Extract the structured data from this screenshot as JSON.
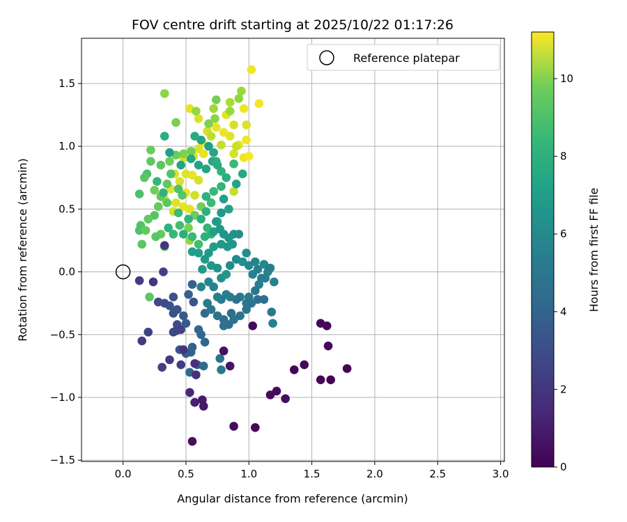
{
  "chart_data": {
    "type": "scatter",
    "title": "FOV centre drift starting at 2025/10/22 01:17:26",
    "xlabel": "Angular distance from reference (arcmin)",
    "ylabel": "Rotation from reference (arcmin)",
    "xlim": [
      -0.33,
      3.03
    ],
    "ylim": [
      -1.51,
      1.86
    ],
    "xticks": [
      0.0,
      0.5,
      1.0,
      1.5,
      2.0,
      2.5,
      3.0
    ],
    "xtick_labels": [
      "0.0",
      "0.5",
      "1.0",
      "1.5",
      "2.0",
      "2.5",
      "3.0"
    ],
    "yticks": [
      -1.5,
      -1.0,
      -0.5,
      0.0,
      0.5,
      1.0,
      1.5
    ],
    "ytick_labels": [
      "−1.5",
      "−1.0",
      "−0.5",
      "0.0",
      "0.5",
      "1.0",
      "1.5"
    ],
    "grid": true,
    "legend": {
      "position": "top-right",
      "entries": [
        "Reference platepar"
      ]
    },
    "reference_point": {
      "x": 0.0,
      "y": 0.0
    },
    "colorbar": {
      "label": "Hours from first FF file",
      "colormap": "viridis",
      "range": [
        0,
        11.2
      ],
      "ticks": [
        0,
        2,
        4,
        6,
        8,
        10
      ],
      "tick_labels": [
        "0",
        "2",
        "4",
        "6",
        "8",
        "10"
      ]
    },
    "points": [
      [
        1.02,
        1.61,
        11.0
      ],
      [
        1.08,
        1.34,
        11.0
      ],
      [
        0.96,
        1.3,
        10.9
      ],
      [
        0.53,
        1.3,
        10.8
      ],
      [
        0.6,
        1.22,
        10.6
      ],
      [
        0.82,
        1.25,
        10.7
      ],
      [
        0.88,
        1.17,
        10.5
      ],
      [
        0.98,
        1.17,
        10.6
      ],
      [
        0.74,
        1.15,
        10.8
      ],
      [
        0.8,
        1.11,
        10.9
      ],
      [
        0.67,
        1.12,
        10.4
      ],
      [
        0.85,
        1.08,
        10.7
      ],
      [
        0.63,
        1.03,
        10.9
      ],
      [
        0.92,
        1.01,
        10.8
      ],
      [
        0.98,
        1.05,
        11.0
      ],
      [
        0.6,
        0.98,
        10.6
      ],
      [
        0.88,
        0.94,
        10.5
      ],
      [
        0.96,
        0.91,
        10.9
      ],
      [
        1.0,
        0.92,
        11.1
      ],
      [
        0.64,
        0.94,
        10.8
      ],
      [
        0.56,
        0.92,
        10.6
      ],
      [
        0.48,
        0.91,
        10.4
      ],
      [
        0.41,
        0.78,
        10.6
      ],
      [
        0.5,
        0.78,
        10.7
      ],
      [
        0.55,
        0.77,
        10.8
      ],
      [
        0.6,
        0.73,
        10.5
      ],
      [
        0.45,
        0.72,
        10.6
      ],
      [
        0.38,
        0.66,
        10.7
      ],
      [
        0.5,
        0.63,
        10.9
      ],
      [
        0.57,
        0.61,
        10.4
      ],
      [
        0.33,
        0.58,
        10.3
      ],
      [
        0.42,
        0.55,
        10.6
      ],
      [
        0.48,
        0.52,
        10.8
      ],
      [
        0.53,
        0.5,
        10.7
      ],
      [
        0.4,
        0.48,
        10.5
      ],
      [
        0.88,
        0.64,
        10.2
      ],
      [
        0.9,
        1.0,
        10.3
      ],
      [
        0.78,
        1.01,
        10.2
      ],
      [
        0.7,
        1.08,
        10.1
      ],
      [
        0.58,
        1.28,
        9.4
      ],
      [
        0.72,
        1.3,
        9.6
      ],
      [
        0.85,
        1.35,
        9.8
      ],
      [
        0.94,
        1.44,
        9.5
      ],
      [
        0.33,
        1.42,
        9.2
      ],
      [
        0.74,
        1.37,
        8.8
      ],
      [
        0.85,
        1.28,
        9.5
      ],
      [
        0.92,
        1.38,
        9.3
      ],
      [
        0.73,
        1.22,
        9.2
      ],
      [
        0.68,
        1.18,
        9.0
      ],
      [
        0.42,
        1.19,
        8.9
      ],
      [
        0.54,
        0.96,
        8.7
      ],
      [
        0.48,
        0.94,
        9.0
      ],
      [
        0.42,
        0.93,
        8.6
      ],
      [
        0.37,
        0.88,
        8.7
      ],
      [
        0.3,
        0.85,
        8.3
      ],
      [
        0.22,
        0.97,
        8.6
      ],
      [
        0.22,
        0.88,
        8.4
      ],
      [
        0.19,
        0.78,
        8.0
      ],
      [
        0.17,
        0.75,
        8.2
      ],
      [
        0.13,
        0.62,
        8.0
      ],
      [
        0.25,
        0.65,
        8.7
      ],
      [
        0.3,
        0.6,
        8.5
      ],
      [
        0.35,
        0.55,
        8.3
      ],
      [
        0.28,
        0.52,
        8.5
      ],
      [
        0.25,
        0.45,
        8.2
      ],
      [
        0.2,
        0.42,
        8.4
      ],
      [
        0.14,
        0.37,
        8.1
      ],
      [
        0.13,
        0.33,
        8.0
      ],
      [
        0.18,
        0.33,
        8.5
      ],
      [
        0.15,
        0.22,
        8.3
      ],
      [
        0.3,
        0.3,
        8.5
      ],
      [
        0.33,
        0.2,
        8.7
      ],
      [
        0.26,
        0.28,
        8.2
      ],
      [
        0.21,
        -0.2,
        8.3
      ],
      [
        0.53,
        0.25,
        9.4
      ],
      [
        0.52,
        0.35,
        8.9
      ],
      [
        0.57,
        0.45,
        8.6
      ],
      [
        0.62,
        0.52,
        8.8
      ],
      [
        0.47,
        0.61,
        8.2
      ],
      [
        0.44,
        0.66,
        8.0
      ],
      [
        0.35,
        0.7,
        8.4
      ],
      [
        0.38,
        0.78,
        8.1
      ],
      [
        0.27,
        0.72,
        7.4
      ],
      [
        0.32,
        0.63,
        7.2
      ],
      [
        0.44,
        0.47,
        7.6
      ],
      [
        0.52,
        0.42,
        7.3
      ],
      [
        0.45,
        0.37,
        7.8
      ],
      [
        0.4,
        0.3,
        7.5
      ],
      [
        0.36,
        0.35,
        7.2
      ],
      [
        0.48,
        0.3,
        7.0
      ],
      [
        0.55,
        0.28,
        7.5
      ],
      [
        0.6,
        0.22,
        7.8
      ],
      [
        0.65,
        0.28,
        7.2
      ],
      [
        0.7,
        0.3,
        7.0
      ],
      [
        0.67,
        0.35,
        7.4
      ],
      [
        0.75,
        0.4,
        7.3
      ],
      [
        0.66,
        0.48,
        7.1
      ],
      [
        0.62,
        0.42,
        7.0
      ],
      [
        0.7,
        0.55,
        7.6
      ],
      [
        0.66,
        0.6,
        7.1
      ],
      [
        0.72,
        0.64,
        7.5
      ],
      [
        0.78,
        0.68,
        7.3
      ],
      [
        0.82,
        0.75,
        7.0
      ],
      [
        0.88,
        0.86,
        7.6
      ],
      [
        0.78,
        0.8,
        7.2
      ],
      [
        0.75,
        0.85,
        6.8
      ],
      [
        0.71,
        0.88,
        6.6
      ],
      [
        0.66,
        0.82,
        6.5
      ],
      [
        0.6,
        0.85,
        6.4
      ],
      [
        0.54,
        0.9,
        6.6
      ],
      [
        0.46,
        0.85,
        6.5
      ],
      [
        0.37,
        0.95,
        6.3
      ],
      [
        0.33,
        1.08,
        7.0
      ],
      [
        0.57,
        1.08,
        6.8
      ],
      [
        0.62,
        1.05,
        6.5
      ],
      [
        0.68,
        1.0,
        6.3
      ],
      [
        0.72,
        0.95,
        6.6
      ],
      [
        0.74,
        0.88,
        6.9
      ],
      [
        0.95,
        0.78,
        6.7
      ],
      [
        0.9,
        0.7,
        6.5
      ],
      [
        0.8,
        0.58,
        6.3
      ],
      [
        0.84,
        0.5,
        6.4
      ],
      [
        0.78,
        0.47,
        6.0
      ],
      [
        0.74,
        0.4,
        6.1
      ],
      [
        0.72,
        0.32,
        6.3
      ],
      [
        0.77,
        0.34,
        6.0
      ],
      [
        0.8,
        0.3,
        5.8
      ],
      [
        0.84,
        0.27,
        5.9
      ],
      [
        0.88,
        0.3,
        5.7
      ],
      [
        0.92,
        0.3,
        5.6
      ],
      [
        0.87,
        0.22,
        5.8
      ],
      [
        0.83,
        0.2,
        6.0
      ],
      [
        0.78,
        0.22,
        5.9
      ],
      [
        0.72,
        0.2,
        6.2
      ],
      [
        0.68,
        0.15,
        6.1
      ],
      [
        0.65,
        0.1,
        6.0
      ],
      [
        0.6,
        0.15,
        6.2
      ],
      [
        0.55,
        0.16,
        6.3
      ],
      [
        0.63,
        0.02,
        6.1
      ],
      [
        0.7,
        0.05,
        6.0
      ],
      [
        0.75,
        0.03,
        5.7
      ],
      [
        0.78,
        -0.05,
        5.6
      ],
      [
        0.82,
        -0.02,
        5.9
      ],
      [
        0.85,
        0.05,
        5.4
      ],
      [
        0.9,
        0.1,
        5.3
      ],
      [
        0.95,
        0.08,
        5.5
      ],
      [
        0.98,
        0.15,
        5.4
      ],
      [
        1.0,
        0.05,
        5.2
      ],
      [
        1.03,
        -0.02,
        5.0
      ],
      [
        1.07,
        0.02,
        4.9
      ],
      [
        1.05,
        0.08,
        5.1
      ],
      [
        1.12,
        0.06,
        5.3
      ],
      [
        1.15,
        0.0,
        5.0
      ],
      [
        1.17,
        0.03,
        4.8
      ],
      [
        1.2,
        -0.08,
        4.9
      ],
      [
        1.13,
        -0.05,
        4.7
      ],
      [
        1.1,
        -0.05,
        4.6
      ],
      [
        1.08,
        -0.1,
        4.8
      ],
      [
        1.05,
        -0.15,
        4.5
      ],
      [
        1.0,
        -0.2,
        4.6
      ],
      [
        0.98,
        -0.25,
        4.4
      ],
      [
        0.93,
        -0.2,
        4.5
      ],
      [
        0.9,
        -0.22,
        4.3
      ],
      [
        0.85,
        -0.2,
        4.6
      ],
      [
        0.82,
        -0.18,
        4.8
      ],
      [
        0.78,
        -0.22,
        4.4
      ],
      [
        0.75,
        -0.2,
        4.9
      ],
      [
        0.72,
        -0.12,
        5.0
      ],
      [
        0.68,
        -0.08,
        5.2
      ],
      [
        0.62,
        -0.12,
        5.1
      ],
      [
        0.67,
        -0.25,
        4.7
      ],
      [
        0.7,
        -0.3,
        4.5
      ],
      [
        0.75,
        -0.35,
        4.2
      ],
      [
        0.8,
        -0.38,
        4.1
      ],
      [
        0.84,
        -0.42,
        4.0
      ],
      [
        0.88,
        -0.38,
        4.3
      ],
      [
        0.93,
        -0.35,
        4.2
      ],
      [
        0.98,
        -0.3,
        4.4
      ],
      [
        1.02,
        -0.25,
        4.3
      ],
      [
        1.07,
        -0.22,
        4.1
      ],
      [
        1.12,
        -0.22,
        4.0
      ],
      [
        1.18,
        -0.32,
        4.5
      ],
      [
        1.19,
        -0.41,
        4.9
      ],
      [
        0.86,
        -0.33,
        4.0
      ],
      [
        0.8,
        -0.43,
        4.1
      ],
      [
        0.65,
        -0.33,
        3.9
      ],
      [
        0.6,
        -0.46,
        3.8
      ],
      [
        0.62,
        -0.5,
        3.7
      ],
      [
        0.65,
        -0.56,
        3.6
      ],
      [
        0.55,
        -0.6,
        3.4
      ],
      [
        0.54,
        -0.64,
        3.5
      ],
      [
        0.5,
        -0.65,
        3.3
      ],
      [
        0.45,
        -0.62,
        3.0
      ],
      [
        0.53,
        -0.8,
        3.8
      ],
      [
        0.59,
        -0.74,
        3.2
      ],
      [
        0.64,
        -0.75,
        3.9
      ],
      [
        0.77,
        -0.69,
        4.2
      ],
      [
        0.78,
        -0.78,
        4.4
      ],
      [
        0.5,
        -0.41,
        3.2
      ],
      [
        0.48,
        -0.35,
        3.1
      ],
      [
        0.43,
        -0.3,
        3.0
      ],
      [
        0.4,
        -0.33,
        2.8
      ],
      [
        0.37,
        -0.27,
        2.9
      ],
      [
        0.33,
        -0.25,
        2.7
      ],
      [
        0.28,
        -0.24,
        2.6
      ],
      [
        0.4,
        -0.2,
        2.8
      ],
      [
        0.43,
        -0.42,
        2.6
      ],
      [
        0.4,
        -0.48,
        2.5
      ],
      [
        0.42,
        -0.47,
        2.4
      ],
      [
        0.46,
        -0.46,
        2.3
      ],
      [
        0.52,
        -0.18,
        3.4
      ],
      [
        0.55,
        -0.1,
        3.5
      ],
      [
        0.56,
        -0.24,
        3.0
      ],
      [
        0.2,
        -0.48,
        2.2
      ],
      [
        0.15,
        -0.55,
        2.0
      ],
      [
        0.13,
        -0.07,
        2.0
      ],
      [
        0.24,
        -0.08,
        1.8
      ],
      [
        0.32,
        0.0,
        2.2
      ],
      [
        0.31,
        -0.76,
        2.1
      ],
      [
        0.46,
        -0.74,
        2.0
      ],
      [
        0.37,
        -0.7,
        1.9
      ],
      [
        0.48,
        -0.62,
        1.7
      ],
      [
        0.57,
        -0.73,
        1.6
      ],
      [
        0.58,
        -0.82,
        1.5
      ],
      [
        0.33,
        0.21,
        1.8
      ],
      [
        0.53,
        -0.96,
        1.2
      ],
      [
        0.57,
        -1.04,
        1.0
      ],
      [
        0.63,
        -1.02,
        0.8
      ],
      [
        0.64,
        -1.07,
        0.7
      ],
      [
        0.55,
        -1.35,
        0.4
      ],
      [
        0.88,
        -1.23,
        0.3
      ],
      [
        1.05,
        -1.24,
        0.2
      ],
      [
        0.85,
        -0.75,
        0.6
      ],
      [
        0.8,
        -0.63,
        0.5
      ],
      [
        1.03,
        -0.43,
        0.3
      ],
      [
        1.17,
        -0.98,
        0.3
      ],
      [
        1.22,
        -0.95,
        0.3
      ],
      [
        1.29,
        -1.01,
        0.4
      ],
      [
        1.36,
        -0.78,
        0.2
      ],
      [
        1.44,
        -0.74,
        0.2
      ],
      [
        1.57,
        -0.86,
        0.2
      ],
      [
        1.65,
        -0.86,
        0.1
      ],
      [
        1.78,
        -0.77,
        0.1
      ],
      [
        1.63,
        -0.59,
        0.2
      ],
      [
        1.57,
        -0.41,
        0.2
      ],
      [
        1.62,
        -0.43,
        0.2
      ]
    ]
  }
}
